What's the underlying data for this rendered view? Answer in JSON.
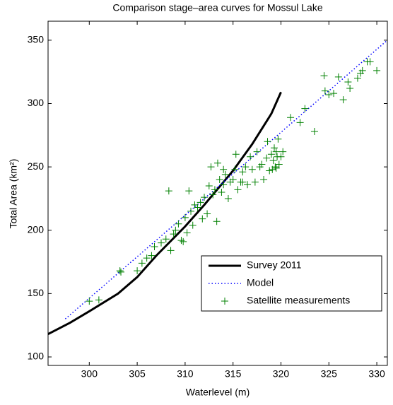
{
  "chart_data": {
    "type": "line_scatter",
    "title": "Comparison stage–area curves for Mossul Lake",
    "x_label": "Waterlevel (m)",
    "y_label": "Total Area (km²)",
    "xlim": [
      295.7,
      331.1
    ],
    "ylim": [
      93.3,
      365
    ],
    "xticks": [
      300,
      305,
      310,
      315,
      320,
      325,
      330
    ],
    "yticks": [
      100,
      150,
      200,
      250,
      300,
      350
    ],
    "legend": "lower right",
    "series": [
      {
        "name": "Survey 2011",
        "color": "#000000",
        "style": "solid",
        "x": [
          295.7,
          298,
          300,
          303,
          305,
          307,
          310,
          312,
          315,
          317,
          319,
          320
        ],
        "values": [
          118,
          127,
          136,
          150,
          163,
          180,
          203,
          220,
          247,
          268,
          292,
          309
        ]
      },
      {
        "name": "Model",
        "color": "#0000ff",
        "style": "dotted",
        "x": [
          297.5,
          331.1
        ],
        "values": [
          130,
          350
        ]
      },
      {
        "name": "Satellite measurements",
        "color": "#008000",
        "style": "plus",
        "x": [
          300,
          301,
          303.2,
          303.3,
          305,
          305.5,
          306,
          306.5,
          306.8,
          307.5,
          308,
          308.3,
          308.5,
          308.8,
          309,
          309.3,
          309.6,
          309.8,
          310,
          310.2,
          310.4,
          310.6,
          310.8,
          311,
          311.3,
          311.6,
          311.8,
          312,
          312.3,
          312.5,
          312.7,
          312.9,
          313.1,
          313.3,
          313.4,
          313.6,
          313.8,
          314,
          314.2,
          314.5,
          314.7,
          315,
          315.2,
          315.3,
          315.5,
          315.8,
          316,
          316.3,
          316.5,
          316.8,
          317,
          317.3,
          317.5,
          317.8,
          318,
          318.2,
          318.5,
          318.6,
          318.8,
          319,
          319.1,
          319.2,
          319.3,
          319.4,
          319.5,
          319.6,
          319.7,
          319.8,
          320,
          320.2,
          321,
          322,
          322.5,
          323.5,
          324.5,
          324.6,
          325,
          325.5,
          326,
          326.5,
          327,
          327.2,
          328,
          328.3,
          328.5,
          329,
          329.3,
          330,
          316,
          314,
          319.5
        ],
        "values": [
          144,
          145,
          168,
          167,
          168,
          174,
          178,
          180,
          187,
          190,
          193,
          231,
          184,
          197,
          200,
          205,
          192,
          191,
          210,
          198,
          231,
          215,
          204,
          220,
          218,
          222,
          209,
          226,
          213,
          235,
          250,
          228,
          232,
          207,
          253,
          240,
          230,
          236,
          244,
          225,
          238,
          240,
          248,
          260,
          232,
          238,
          246,
          250,
          236,
          258,
          248,
          238,
          262,
          250,
          252,
          240,
          257,
          270,
          247,
          260,
          248,
          255,
          265,
          250,
          262,
          258,
          272,
          252,
          258,
          262,
          289,
          285,
          296,
          278,
          322,
          310,
          307,
          308,
          321,
          303,
          317,
          312,
          320,
          324,
          326,
          333,
          333,
          326,
          238,
          248,
          249
        ]
      }
    ]
  }
}
